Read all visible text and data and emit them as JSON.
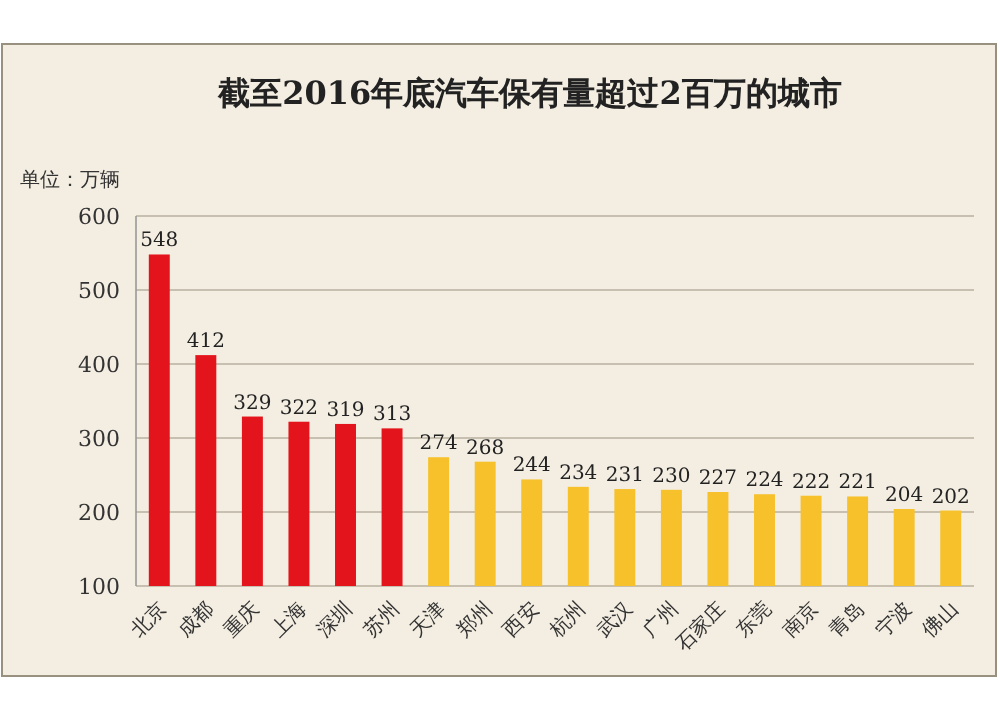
{
  "chart_data": {
    "type": "bar",
    "title": "截至2016年底汽车保有量超过2百万的城市",
    "ylabel": "单位：万辆",
    "categories": [
      "北京",
      "成都",
      "重庆",
      "上海",
      "深圳",
      "苏州",
      "天津",
      "郑州",
      "西安",
      "杭州",
      "武汉",
      "广州",
      "石家庄",
      "东莞",
      "南京",
      "青岛",
      "宁波",
      "佛山"
    ],
    "values": [
      548,
      412,
      329,
      322,
      319,
      313,
      274,
      268,
      244,
      234,
      231,
      230,
      227,
      224,
      222,
      221,
      204,
      202
    ],
    "colors": [
      "#e3141b",
      "#e3141b",
      "#e3141b",
      "#e3141b",
      "#e3141b",
      "#e3141b",
      "#f6c12a",
      "#f6c12a",
      "#f6c12a",
      "#f6c12a",
      "#f6c12a",
      "#f6c12a",
      "#f6c12a",
      "#f6c12a",
      "#f6c12a",
      "#f6c12a",
      "#f6c12a",
      "#f6c12a"
    ],
    "ylim": [
      100,
      600
    ],
    "yticks": [
      100,
      200,
      300,
      400,
      500,
      600
    ],
    "grid": "y",
    "data_labels": true
  }
}
